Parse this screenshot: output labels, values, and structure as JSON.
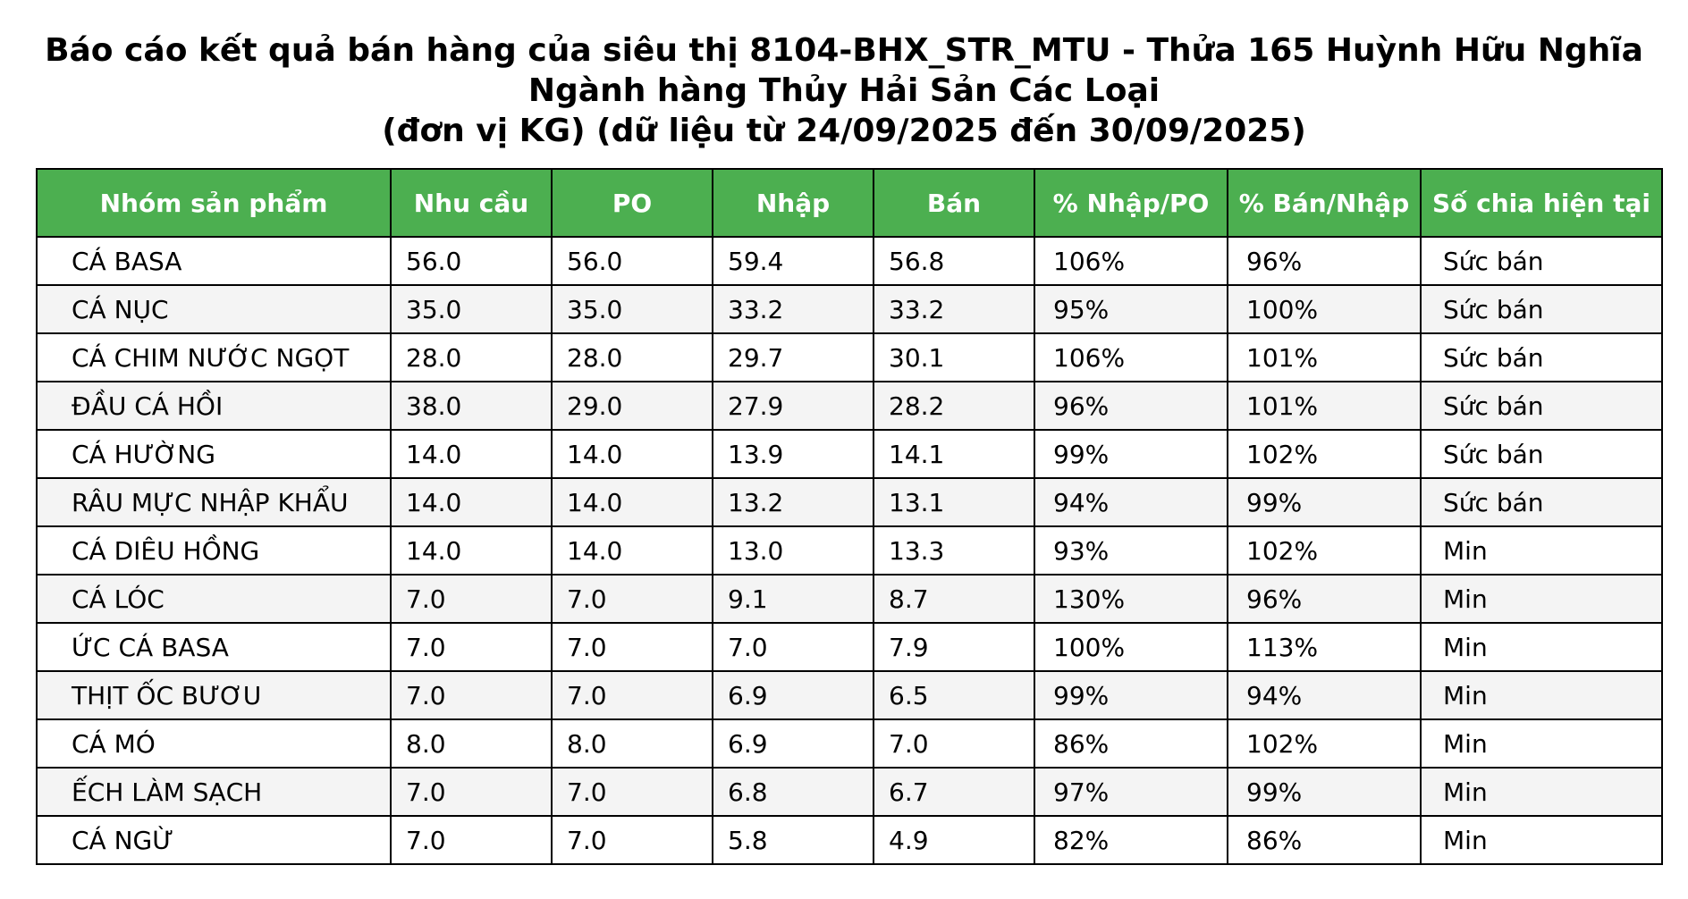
{
  "title": {
    "line1": "Báo cáo kết quả bán hàng của siêu thị 8104-BHX_STR_MTU - Thửa 165 Huỳnh Hữu Nghĩa",
    "line2": "Ngành hàng Thủy Hải Sản Các Loại",
    "line3": "(đơn vị KG) (dữ liệu từ 24/09/2025 đến 30/09/2025)"
  },
  "colors": {
    "header_background": "#4caf50",
    "header_text": "#ffffff",
    "row_alt_background": "#f4f4f4",
    "border": "#000000"
  },
  "table": {
    "headers": [
      "Nhóm sản phẩm",
      "Nhu cầu",
      "PO",
      "Nhập",
      "Bán",
      "% Nhập/PO",
      "% Bán/Nhập",
      "Số chia hiện tại"
    ],
    "rows": [
      [
        "CÁ BASA",
        "56.0",
        "56.0",
        "59.4",
        "56.8",
        "106%",
        "96%",
        "Sức bán"
      ],
      [
        "CÁ NỤC",
        "35.0",
        "35.0",
        "33.2",
        "33.2",
        "95%",
        "100%",
        "Sức bán"
      ],
      [
        "CÁ CHIM NƯỚC NGỌT",
        "28.0",
        "28.0",
        "29.7",
        "30.1",
        "106%",
        "101%",
        "Sức bán"
      ],
      [
        "ĐẦU CÁ HỒI",
        "38.0",
        "29.0",
        "27.9",
        "28.2",
        "96%",
        "101%",
        "Sức bán"
      ],
      [
        "CÁ HƯỜNG",
        "14.0",
        "14.0",
        "13.9",
        "14.1",
        "99%",
        "102%",
        "Sức bán"
      ],
      [
        "RÂU MỰC NHẬP KHẨU",
        "14.0",
        "14.0",
        "13.2",
        "13.1",
        "94%",
        "99%",
        "Sức bán"
      ],
      [
        "CÁ DIÊU HỒNG",
        "14.0",
        "14.0",
        "13.0",
        "13.3",
        "93%",
        "102%",
        "Min"
      ],
      [
        "CÁ LÓC",
        "7.0",
        "7.0",
        "9.1",
        "8.7",
        "130%",
        "96%",
        "Min"
      ],
      [
        "ỨC CÁ BASA",
        "7.0",
        "7.0",
        "7.0",
        "7.9",
        "100%",
        "113%",
        "Min"
      ],
      [
        "THỊT ỐC BƯƠU",
        "7.0",
        "7.0",
        "6.9",
        "6.5",
        "99%",
        "94%",
        "Min"
      ],
      [
        "CÁ MÓ",
        "8.0",
        "8.0",
        "6.9",
        "7.0",
        "86%",
        "102%",
        "Min"
      ],
      [
        "ẾCH LÀM SẠCH",
        "7.0",
        "7.0",
        "6.8",
        "6.7",
        "97%",
        "99%",
        "Min"
      ],
      [
        "CÁ NGỪ",
        "7.0",
        "7.0",
        "5.8",
        "4.9",
        "82%",
        "86%",
        "Min"
      ]
    ]
  }
}
